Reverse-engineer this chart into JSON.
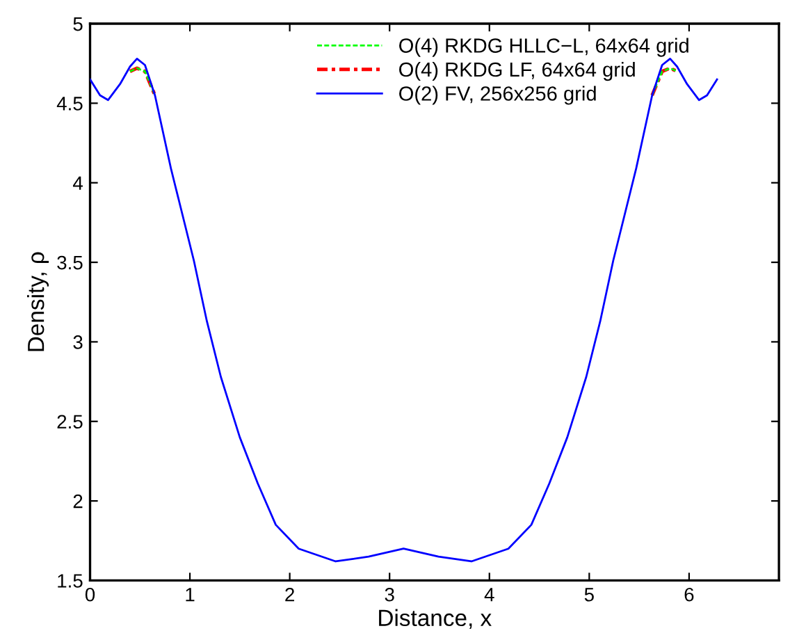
{
  "chart_data": {
    "type": "line",
    "xlabel": "Distance, x",
    "ylabel": "Density, ρ",
    "xlim": [
      0,
      6.9
    ],
    "xticks": [
      0,
      1,
      2,
      3,
      4,
      5,
      6
    ],
    "ylim": [
      1.5,
      5
    ],
    "yticks": [
      1.5,
      2,
      2.5,
      3,
      3.5,
      4,
      4.5,
      5
    ],
    "grid": false,
    "legend": "top",
    "marker": "none",
    "x": [
      0,
      0.1,
      0.18,
      0.3,
      0.4,
      0.47,
      0.55,
      0.65,
      0.81,
      1.04,
      1.17,
      1.31,
      1.5,
      1.68,
      1.86,
      2.09,
      2.46,
      2.79,
      3.14,
      3.49,
      3.82,
      4.19,
      4.42,
      4.6,
      4.78,
      4.97,
      5.11,
      5.24,
      5.47,
      5.63,
      5.73,
      5.81,
      5.88,
      5.98,
      6.1,
      6.18,
      6.28
    ],
    "series": [
      {
        "name": "O(4) RKDG HLLC−L, 64x64 grid",
        "color": "#00ff00",
        "line_style": "dashed",
        "values": [
          null,
          null,
          null,
          null,
          4.7,
          4.72,
          4.7,
          4.55,
          null,
          null,
          null,
          null,
          null,
          null,
          null,
          null,
          null,
          null,
          null,
          null,
          null,
          null,
          null,
          null,
          null,
          null,
          null,
          null,
          null,
          4.55,
          4.7,
          4.72,
          4.7,
          null,
          null,
          null,
          null
        ]
      },
      {
        "name": "O(4) RKDG LF, 64x64 grid",
        "color": "#ff0000",
        "line_style": "dashdot",
        "values": [
          null,
          null,
          null,
          null,
          4.7,
          4.72,
          4.7,
          4.55,
          null,
          null,
          null,
          null,
          null,
          null,
          null,
          null,
          null,
          null,
          null,
          null,
          null,
          null,
          null,
          null,
          null,
          null,
          null,
          null,
          null,
          4.55,
          4.7,
          4.72,
          4.7,
          null,
          null,
          null,
          null
        ]
      },
      {
        "name": "O(2) FV, 256x256 grid",
        "color": "#0000ff",
        "line_style": "solid",
        "values": [
          4.65,
          4.55,
          4.52,
          4.62,
          4.73,
          4.78,
          4.74,
          4.55,
          4.09,
          3.51,
          3.13,
          2.78,
          2.4,
          2.11,
          1.85,
          1.7,
          1.62,
          1.65,
          1.7,
          1.65,
          1.62,
          1.7,
          1.85,
          2.11,
          2.4,
          2.78,
          3.13,
          3.51,
          4.09,
          4.55,
          4.74,
          4.78,
          4.73,
          4.62,
          4.52,
          4.55,
          4.65
        ]
      }
    ]
  }
}
